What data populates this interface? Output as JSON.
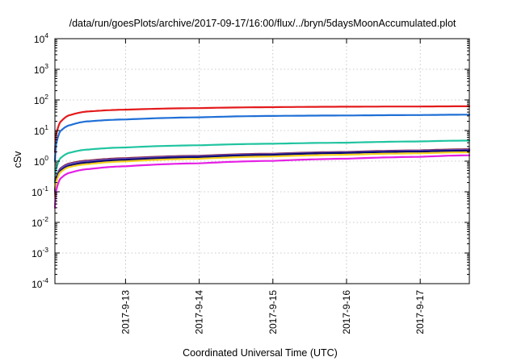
{
  "chart_data": {
    "type": "line",
    "title": "/data/run/goesPlots/archive/2017-09-17/16:00/flux/../bryn/5daysMoonAccumulated.plot",
    "xlabel": "Coordinated Universal Time (UTC)",
    "ylabel": "cSv",
    "yscale": "log",
    "xlim": [
      "2017-09-12 01:00",
      "2017-09-17 16:00"
    ],
    "ylim": [
      0.0001,
      10000
    ],
    "x_ticks": [
      "2017-9-13",
      "2017-9-14",
      "2017-9-15",
      "2017-9-16",
      "2017-9-17"
    ],
    "y_ticks": [
      {
        "value": 0.0001,
        "base": "10",
        "exp": "-4"
      },
      {
        "value": 0.001,
        "base": "10",
        "exp": "-3"
      },
      {
        "value": 0.01,
        "base": "10",
        "exp": "-2"
      },
      {
        "value": 0.1,
        "base": "10",
        "exp": "-1"
      },
      {
        "value": 1,
        "base": "10",
        "exp": "0"
      },
      {
        "value": 10,
        "base": "10",
        "exp": "1"
      },
      {
        "value": 100,
        "base": "10",
        "exp": "2"
      },
      {
        "value": 1000,
        "base": "10",
        "exp": "3"
      },
      {
        "value": 10000,
        "base": "10",
        "exp": "4"
      }
    ],
    "grid": true,
    "legend": "none",
    "x": [
      "2017-09-12 01:00",
      "2017-09-12 01:30",
      "2017-09-12 03:00",
      "2017-09-12 06:00",
      "2017-09-12 12:00",
      "2017-09-13 00:00",
      "2017-09-14 00:00",
      "2017-09-15 00:00",
      "2017-09-16 00:00",
      "2017-09-17 00:00",
      "2017-09-17 16:00"
    ],
    "series": [
      {
        "color": "#e41a1c",
        "values": [
          2.0,
          8.0,
          20,
          32,
          42,
          48,
          54,
          58,
          60,
          61,
          62
        ]
      },
      {
        "color": "#1f6fd6",
        "values": [
          1.0,
          4.0,
          10,
          15,
          20,
          23,
          27,
          30,
          31,
          32,
          33
        ]
      },
      {
        "color": "#20c4a0",
        "values": [
          0.2,
          0.6,
          1.3,
          1.9,
          2.4,
          2.8,
          3.3,
          3.7,
          4.0,
          4.4,
          4.7
        ]
      },
      {
        "color": "#8b1a1a",
        "values": [
          0.1,
          0.3,
          0.6,
          0.85,
          1.05,
          1.25,
          1.5,
          1.75,
          2.0,
          2.25,
          2.45
        ]
      },
      {
        "color": "#6a4ab8",
        "values": [
          0.09,
          0.28,
          0.58,
          0.82,
          1.0,
          1.2,
          1.45,
          1.7,
          1.95,
          2.2,
          2.35
        ]
      },
      {
        "color": "#0a0a70",
        "values": [
          0.08,
          0.25,
          0.5,
          0.72,
          0.9,
          1.1,
          1.35,
          1.6,
          1.85,
          2.05,
          2.2
        ]
      },
      {
        "color": "#f5d020",
        "values": [
          0.07,
          0.22,
          0.45,
          0.65,
          0.8,
          0.98,
          1.2,
          1.42,
          1.62,
          1.8,
          1.95
        ]
      },
      {
        "color": "#e520e5",
        "values": [
          0.03,
          0.12,
          0.28,
          0.42,
          0.55,
          0.68,
          0.85,
          1.02,
          1.2,
          1.38,
          1.55
        ]
      }
    ]
  }
}
